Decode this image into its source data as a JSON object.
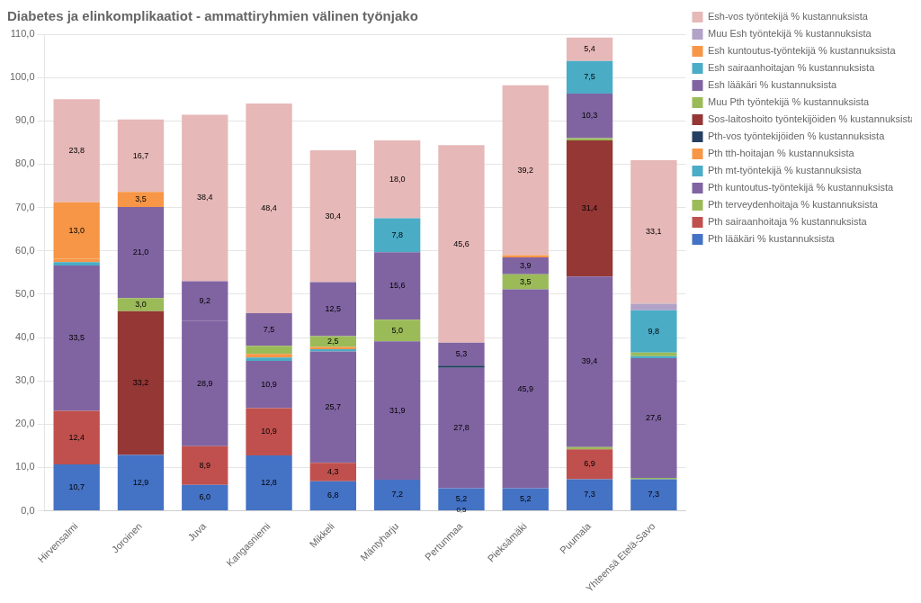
{
  "chart_data": {
    "type": "bar",
    "stacked": true,
    "title": "Diabetes ja elinkomplikaatiot - ammattiryhmien välinen työnjako",
    "categories": [
      "Hirvensalmi",
      "Joroinen",
      "Juva",
      "Kangasniemi",
      "Mikkeli",
      "Mäntyharju",
      "Pertunmaa",
      "Pieksämäki",
      "Puumala",
      "Yhteensä Etelä-Savo"
    ],
    "series": [
      {
        "name": "Pth lääkäri % kustannuksista",
        "color": "#4472C4",
        "values": [
          10.7,
          12.9,
          6.0,
          12.8,
          6.8,
          7.2,
          5.2,
          5.2,
          7.3,
          7.3
        ],
        "value_labels": [
          "10,7",
          "12,9",
          "6,0",
          "12,8",
          "6,8",
          "7,2",
          "5,2",
          "5,2",
          "7,3",
          "7,3"
        ]
      },
      {
        "name": "Pth sairaanhoitaja % kustannuksista",
        "color": "#C0504D",
        "values": [
          12.4,
          0.0,
          8.9,
          10.9,
          4.3,
          0.0,
          0.0,
          0.0,
          6.9,
          0.0
        ],
        "value_labels": [
          "12,4",
          null,
          "8,9",
          "10,9",
          "4,3",
          null,
          null,
          null,
          "6,9",
          null
        ]
      },
      {
        "name": "Pth terveydenhoitaja % kustannuksista",
        "color": "#9BBB59",
        "values": [
          0.0,
          0.0,
          0.0,
          0.0,
          0.0,
          0.0,
          0.0,
          0.0,
          0.5,
          0.3
        ],
        "value_labels": [
          null,
          null,
          null,
          null,
          null,
          null,
          null,
          null,
          null,
          null
        ]
      },
      {
        "name": "Pth kuntoutus-työntekijä % kustannuksista",
        "color": "#8064A2",
        "values": [
          33.5,
          0.0,
          28.9,
          10.9,
          25.7,
          31.9,
          27.8,
          45.9,
          39.4,
          27.6
        ],
        "value_labels": [
          "33,5",
          null,
          "28,9",
          "10,9",
          "25,7",
          "31,9",
          "27,8",
          "45,9",
          "39,4",
          "27,6"
        ]
      },
      {
        "name": "Pth mt-työntekijä % kustannuksista",
        "color": "#4BACC6",
        "values": [
          0.8,
          0.0,
          0.0,
          0.8,
          0.5,
          0.0,
          0.0,
          0.0,
          0.0,
          0.5
        ],
        "value_labels": [
          null,
          null,
          null,
          null,
          null,
          null,
          null,
          null,
          null,
          null
        ]
      },
      {
        "name": "Pth tth-hoitajan % kustannuksista",
        "color": "#F79646",
        "values": [
          0.8,
          0.0,
          0.0,
          0.8,
          0.5,
          0.0,
          0.0,
          0.0,
          0.0,
          0.0
        ],
        "value_labels": [
          null,
          null,
          null,
          null,
          null,
          null,
          null,
          null,
          null,
          null
        ]
      },
      {
        "name": "Pth-vos työntekijöiden % kustannuksista",
        "color": "#243F60",
        "values": [
          0.0,
          0.0,
          0.0,
          0.0,
          0.0,
          0.0,
          0.5,
          0.0,
          0.0,
          0.0
        ],
        "value_labels": [
          null,
          null,
          null,
          null,
          null,
          null,
          null,
          null,
          null,
          null
        ]
      },
      {
        "name": "Sos-laitoshoito työntekijöiden % kustannuksista",
        "color": "#943735",
        "values": [
          0.0,
          33.2,
          0.0,
          0.0,
          0.0,
          0.0,
          0.0,
          0.0,
          31.4,
          0.0
        ],
        "value_labels": [
          null,
          "33,2",
          null,
          null,
          null,
          null,
          null,
          null,
          "31,4",
          null
        ]
      },
      {
        "name": "Muu Pth työntekijä % kustannuksista",
        "color": "#9BBB59",
        "values": [
          0.0,
          3.0,
          0.0,
          1.9,
          2.5,
          5.0,
          0.0,
          3.5,
          0.5,
          0.8
        ],
        "value_labels": [
          null,
          "3,0",
          null,
          null,
          "2,5",
          "5,0",
          null,
          "3,5",
          null,
          null
        ]
      },
      {
        "name": "Esh lääkäri % kustannuksista",
        "color": "#8064A2",
        "values": [
          0.0,
          21.0,
          9.2,
          7.5,
          12.5,
          15.6,
          5.3,
          3.9,
          10.3,
          0.0
        ],
        "value_labels": [
          null,
          "21,0",
          "9,2",
          "7,5",
          "12,5",
          "15,6",
          "5,3",
          "3,9",
          "10,3",
          null
        ]
      },
      {
        "name": "Esh sairaanhoitajan % kustannuksista",
        "color": "#4BACC6",
        "values": [
          0.0,
          0.0,
          0.0,
          0.0,
          0.0,
          7.8,
          0.0,
          0.0,
          7.5,
          9.8
        ],
        "value_labels": [
          null,
          null,
          null,
          null,
          null,
          "7,8",
          null,
          null,
          "7,5",
          "9,8"
        ]
      },
      {
        "name": "Esh kuntoutus-työntekijä % kustannuksista",
        "color": "#F79646",
        "values": [
          13.0,
          3.5,
          0.0,
          0.0,
          0.0,
          0.0,
          0.0,
          0.5,
          0.0,
          0.0
        ],
        "value_labels": [
          "13,0",
          "3,5",
          null,
          null,
          null,
          null,
          null,
          null,
          null,
          null
        ]
      },
      {
        "name": "Muu Esh työntekijä % kustannuksista",
        "color": "#B2A2C7",
        "values": [
          0.0,
          0.0,
          0.0,
          0.0,
          0.0,
          0.0,
          0.0,
          0.0,
          0.0,
          1.5
        ],
        "value_labels": [
          null,
          null,
          null,
          null,
          null,
          null,
          null,
          null,
          null,
          null
        ]
      },
      {
        "name": "Esh-vos työntekijä % kustannuksista",
        "color": "#E6B8B7",
        "values": [
          23.8,
          16.7,
          38.4,
          48.4,
          30.4,
          18.0,
          45.6,
          39.2,
          5.4,
          33.1
        ],
        "value_labels": [
          "23,8",
          "16,7",
          "38,4",
          "48,4",
          "30,4",
          "18,0",
          "45,6",
          "39,2",
          "5,4",
          "33,1"
        ]
      }
    ],
    "data_labels": true,
    "annotations": [
      {
        "text": "0,5",
        "x": "Pertunmaa",
        "y": 0.25
      }
    ],
    "ylim": [
      0,
      110
    ],
    "yticks": [
      {
        "value": 0,
        "label": "0,0"
      },
      {
        "value": 10,
        "label": "10,0"
      },
      {
        "value": 20,
        "label": "20,0"
      },
      {
        "value": 30,
        "label": "30,0"
      },
      {
        "value": 40,
        "label": "40,0"
      },
      {
        "value": 50,
        "label": "50,0"
      },
      {
        "value": 60,
        "label": "60,0"
      },
      {
        "value": 70,
        "label": "70,0"
      },
      {
        "value": 80,
        "label": "80,0"
      },
      {
        "value": 90,
        "label": "90,0"
      },
      {
        "value": 100,
        "label": "100,0"
      },
      {
        "value": 110,
        "label": "110,0"
      }
    ],
    "grid": true,
    "legend": "right"
  }
}
